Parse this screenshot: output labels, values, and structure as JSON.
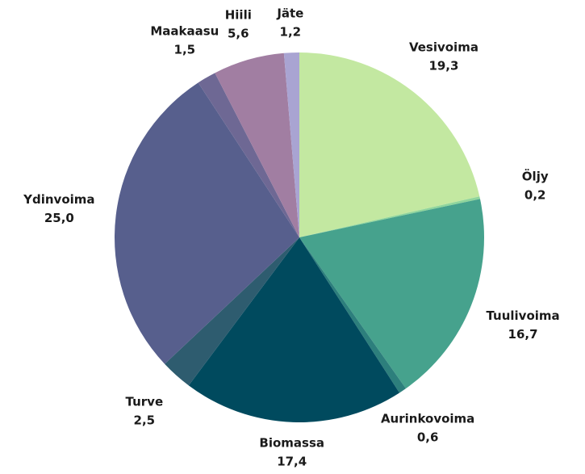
{
  "chart_data": {
    "type": "pie",
    "categories": [
      "Vesivoima",
      "Öljy",
      "Tuulivoima",
      "Aurinkovoima",
      "Biomassa",
      "Turve",
      "Ydinvoima",
      "Maakaasu",
      "Hiili",
      "Jäte"
    ],
    "values": [
      19.3,
      0.2,
      16.7,
      0.6,
      17.4,
      2.5,
      25.0,
      1.5,
      5.6,
      1.2
    ],
    "value_labels": [
      "19,3",
      "0,2",
      "16,7",
      "0,6",
      "17,4",
      "2,5",
      "25,0",
      "1,5",
      "5,6",
      "1,2"
    ],
    "colors": [
      "#c3e8a1",
      "#8fd59c",
      "#46a28d",
      "#2d7f7c",
      "#004a5e",
      "#2e5c6f",
      "#575f8d",
      "#6e6894",
      "#a17ea2",
      "#a9a4d2"
    ]
  }
}
